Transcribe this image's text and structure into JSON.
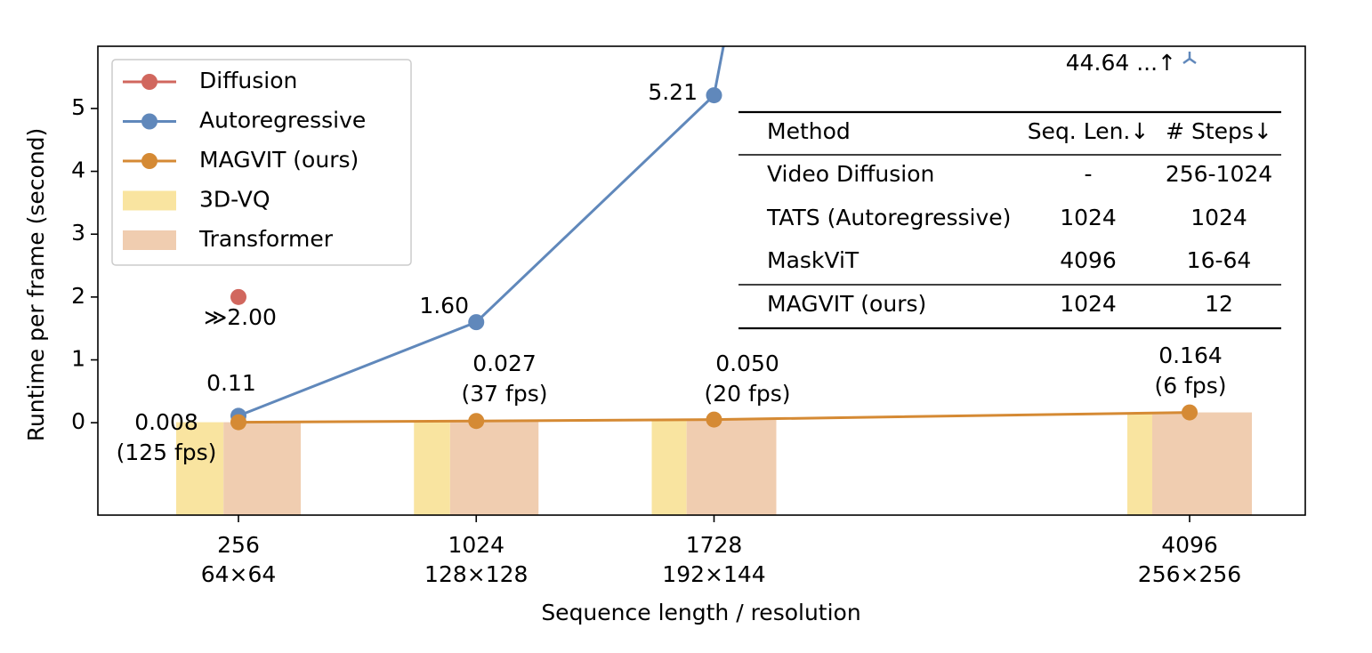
{
  "chart_data": {
    "type": "line",
    "x_label": "Sequence length / resolution",
    "y_label": "Runtime per frame (second)",
    "categories": [
      "256",
      "1024",
      "1728",
      "4096"
    ],
    "category_sublabels": [
      "64×64",
      "128×128",
      "192×144",
      "256×256"
    ],
    "ylim": [
      -1.47,
      5.99
    ],
    "yticks": [
      0,
      1,
      2,
      3,
      4,
      5
    ],
    "legend": "upper left",
    "series": [
      {
        "name": "Diffusion",
        "color": "#d1675e",
        "values": [
          2.0,
          null,
          null,
          null
        ],
        "value_labels": [
          "≫2.00",
          null,
          null,
          null
        ]
      },
      {
        "name": "Autoregressive",
        "color": "#6088bb",
        "values": [
          0.11,
          1.6,
          5.21,
          44.64
        ],
        "value_labels": [
          "0.11",
          "1.60",
          "5.21",
          "44.64 ...↑"
        ]
      },
      {
        "name": "MAGVIT (ours)",
        "color": "#d58a34",
        "values": [
          0.008,
          0.027,
          0.05,
          0.164
        ],
        "value_labels": [
          "0.008",
          "0.027",
          "0.050",
          "0.164"
        ],
        "fps_labels": [
          "(125 fps)",
          "(37 fps)",
          "(20 fps)",
          "(6 fps)"
        ]
      }
    ],
    "share_bars": [
      {
        "name": "3D-VQ",
        "color": "#f9e4a0",
        "values": [
          38,
          29,
          28,
          20
        ]
      },
      {
        "name": "Transformer",
        "color": "#f0cdb0",
        "values": [
          62,
          71,
          72,
          80
        ]
      }
    ]
  },
  "table": {
    "columns": [
      "Method",
      "Seq. Len.↓",
      "# Steps↓"
    ],
    "rows": [
      [
        "Video Diffusion",
        "-",
        "256-1024"
      ],
      [
        "TATS (Autoregressive)",
        "1024",
        "1024"
      ],
      [
        "MaskViT",
        "4096",
        "16-64"
      ],
      [
        "MAGVIT (ours)",
        "1024",
        "12"
      ]
    ]
  }
}
